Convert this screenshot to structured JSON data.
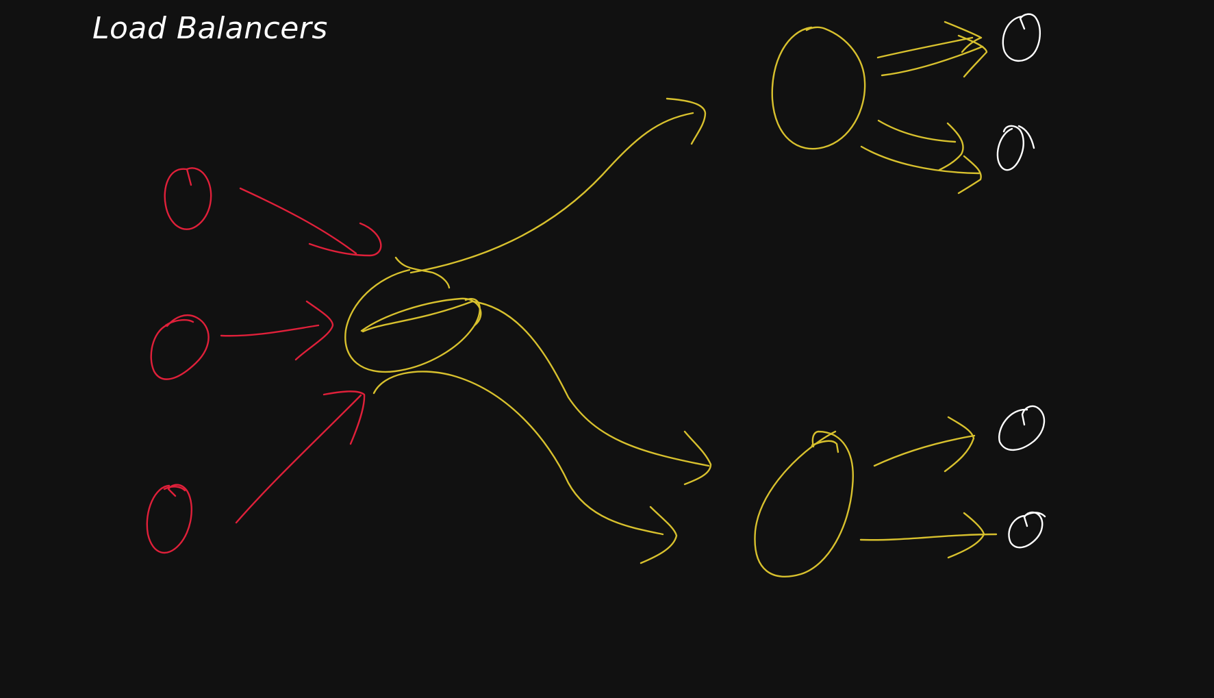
{
  "title": "Load Balancers",
  "colors": {
    "background": "#111111",
    "clients": "#e0203a",
    "load_balancers": "#d8c12e",
    "servers": "#ffffff",
    "title": "#ffffff"
  }
}
